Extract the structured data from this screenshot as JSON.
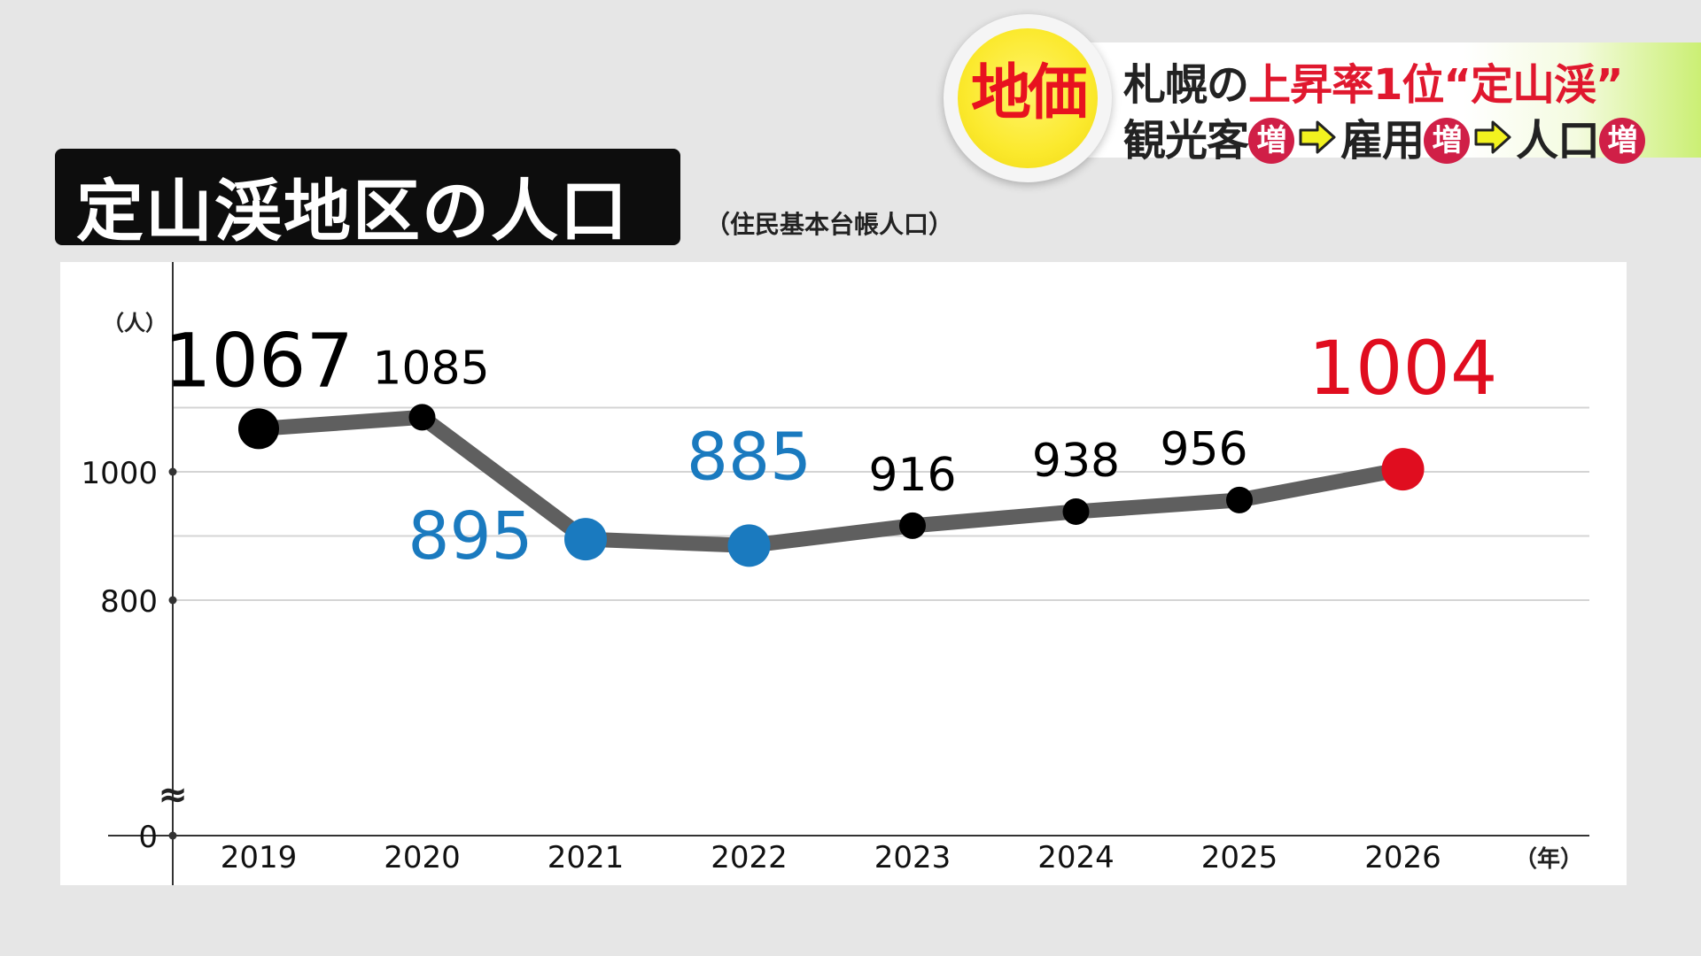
{
  "banner": {
    "badge": "地価",
    "line1_prefix": "札幌の",
    "line1_highlight": "上昇率1位“定山渓”",
    "line2_parts": [
      "観光客",
      "雇用",
      "人口"
    ],
    "increase_mark": "増"
  },
  "title": "定山渓地区の人口",
  "subtitle": "（住民基本台帳人口）",
  "chart_data": {
    "type": "line",
    "title": "定山渓地区の人口",
    "subtitle": "（住民基本台帳人口）",
    "y_unit": "（人）",
    "x_unit": "（年）",
    "categories": [
      "2019",
      "2020",
      "2021",
      "2022",
      "2023",
      "2024",
      "2025",
      "2026"
    ],
    "series": [
      {
        "values": [
          1067,
          1085,
          895,
          885,
          916,
          938,
          956,
          1004
        ]
      }
    ],
    "y_ticks": [
      0,
      800,
      1000
    ],
    "axis_break": "≈",
    "ylim": [
      0,
      1100
    ],
    "grid": true,
    "colors": {
      "line": "#5f5f5f",
      "default_point": "#000000",
      "low_point": "#1a7abf",
      "latest_point": "#e00d1f"
    },
    "point_styles": [
      "default",
      "default",
      "low",
      "low",
      "default",
      "default",
      "default",
      "latest"
    ]
  }
}
